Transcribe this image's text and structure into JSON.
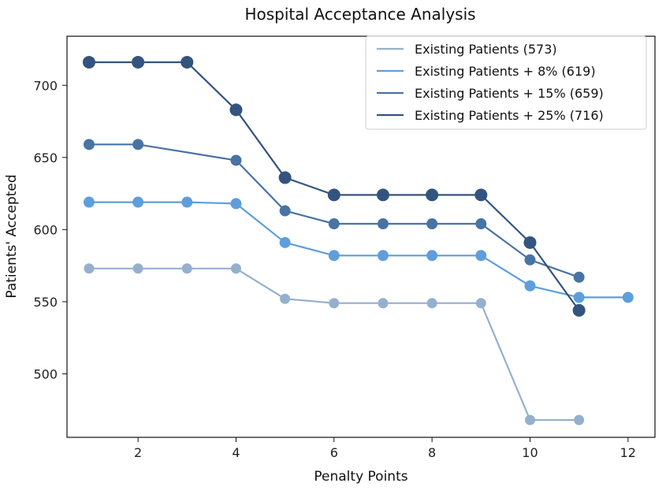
{
  "chart_data": {
    "type": "line",
    "title": "Hospital Acceptance Analysis",
    "xlabel": "Penalty Points",
    "ylabel": "Patients' Accepted",
    "xlim": [
      0.55,
      12.55
    ],
    "ylim": [
      456,
      734
    ],
    "xticks": [
      2,
      4,
      6,
      8,
      10,
      12
    ],
    "yticks": [
      500,
      550,
      600,
      650,
      700
    ],
    "grid": false,
    "legend_position": "top-right",
    "series": [
      {
        "name": "Existing Patients (573)",
        "color": "#95b0cd",
        "marker_size": "small",
        "x": [
          1,
          2,
          3,
          4,
          5,
          6,
          7,
          8,
          9,
          10,
          11
        ],
        "y": [
          573,
          573,
          573,
          573,
          552,
          549,
          549,
          549,
          549,
          468,
          468
        ]
      },
      {
        "name": "Existing Patients + 8% (619)",
        "color": "#5f9edc",
        "marker_size": "medium",
        "x": [
          1,
          2,
          3,
          4,
          5,
          6,
          7,
          8,
          9,
          10,
          11,
          12
        ],
        "y": [
          619,
          619,
          619,
          618,
          591,
          582,
          582,
          582,
          582,
          561,
          553,
          553
        ]
      },
      {
        "name": "Existing Patients + 15% (659)",
        "color": "#4873a5",
        "marker_size": "medium",
        "x": [
          1,
          2,
          4,
          5,
          6,
          7,
          8,
          9,
          10,
          11
        ],
        "y": [
          659,
          659,
          648,
          613,
          604,
          604,
          604,
          604,
          579,
          567
        ]
      },
      {
        "name": "Existing Patients + 25% (716)",
        "color": "#33547f",
        "marker_size": "large",
        "x": [
          1,
          2,
          3,
          4,
          5,
          6,
          7,
          8,
          9,
          10,
          11
        ],
        "y": [
          716,
          716,
          716,
          683,
          636,
          624,
          624,
          624,
          624,
          591,
          544
        ]
      }
    ]
  }
}
